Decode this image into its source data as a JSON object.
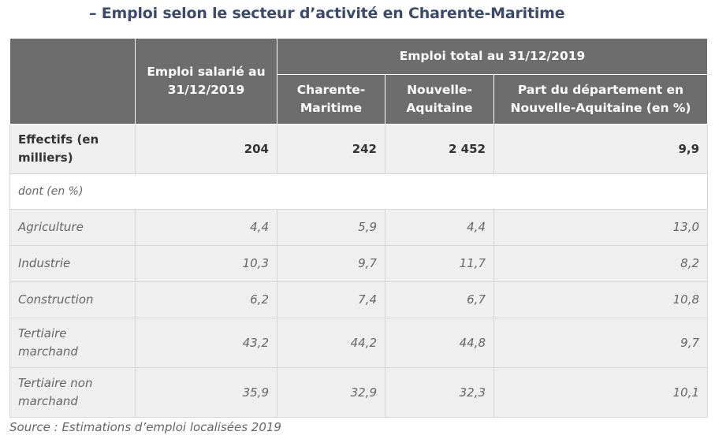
{
  "title": "– Emploi selon le secteur d’activité en Charente-Maritime",
  "header": {
    "col_salarie": "Emploi salarié au 31/12/2019",
    "group_total": "Emploi total au 31/12/2019",
    "col_cm": "Charente-Maritime",
    "col_na": "Nouvelle-Aquitaine",
    "col_part": "Part du département en Nouvelle-Aquitaine (en %)"
  },
  "effectifs": {
    "label": "Effectifs (en milliers)",
    "values": [
      "204",
      "242",
      "2 452",
      "9,9"
    ]
  },
  "dont_label": "dont (en %)",
  "rows": [
    {
      "label": "Agriculture",
      "values": [
        "4,4",
        "5,9",
        "4,4",
        "13,0"
      ]
    },
    {
      "label": "Industrie",
      "values": [
        "10,3",
        "9,7",
        "11,7",
        "8,2"
      ]
    },
    {
      "label": "Construction",
      "values": [
        "6,2",
        "7,4",
        "6,7",
        "10,8"
      ]
    },
    {
      "label": "Tertiaire marchand",
      "values": [
        "43,2",
        "44,2",
        "44,8",
        "9,7"
      ]
    },
    {
      "label": "Tertiaire non marchand",
      "values": [
        "35,9",
        "32,9",
        "32,3",
        "10,1"
      ]
    }
  ],
  "source": "Source : Estimations d’emploi localisées 2019"
}
